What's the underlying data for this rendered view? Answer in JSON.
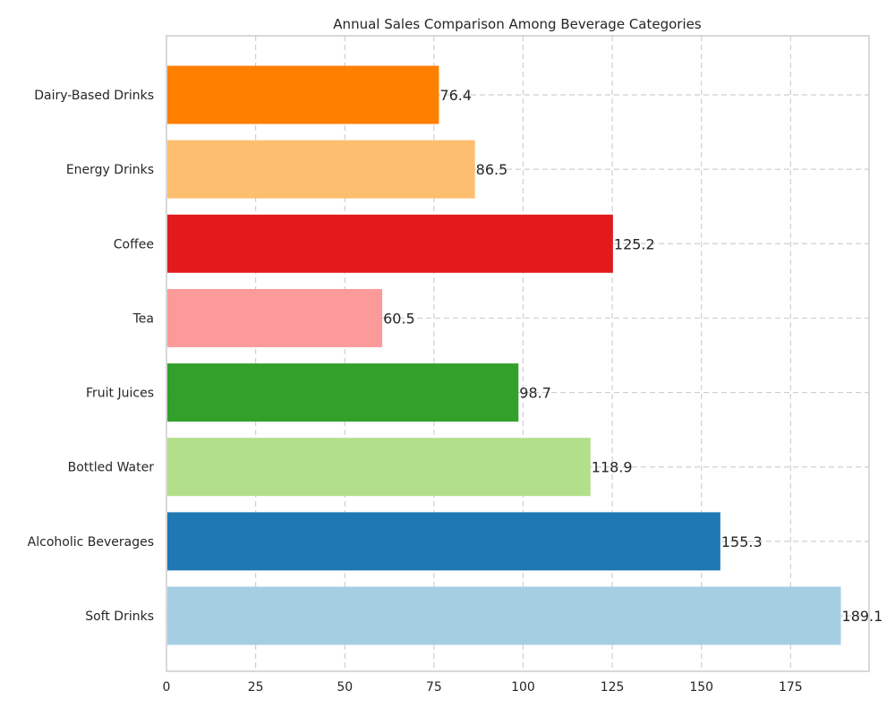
{
  "chart_data": {
    "type": "bar",
    "orientation": "horizontal",
    "title": "Annual Sales Comparison Among Beverage Categories",
    "xlabel": "",
    "ylabel": "",
    "xlim": [
      0,
      197
    ],
    "xticks": [
      0,
      25,
      50,
      75,
      100,
      125,
      150,
      175
    ],
    "grid": true,
    "categories": [
      "Soft Drinks",
      "Alcoholic Beverages",
      "Bottled Water",
      "Fruit Juices",
      "Tea",
      "Coffee",
      "Energy Drinks",
      "Dairy-Based Drinks"
    ],
    "values": [
      189.1,
      155.3,
      118.9,
      98.7,
      60.5,
      125.2,
      86.5,
      76.4
    ],
    "value_labels": [
      "189.1",
      "155.3",
      "118.9",
      "98.7",
      "60.5",
      "125.2",
      "86.5",
      "76.4"
    ],
    "colors": [
      "#a6cee3",
      "#1f78b4",
      "#b2df8a",
      "#33a02c",
      "#fb9a99",
      "#e31a1c",
      "#fdbf6f",
      "#ff7f00"
    ]
  }
}
